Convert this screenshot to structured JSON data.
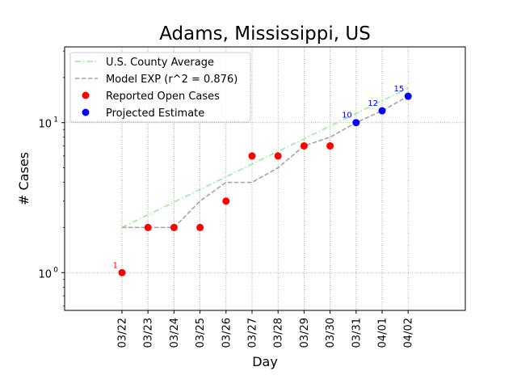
{
  "chart_data": {
    "type": "line",
    "title": "Adams, Mississippi, US",
    "xlabel": "Day",
    "ylabel": "# Cases",
    "yscale": "log",
    "ylim": [
      0.56,
      32
    ],
    "grid": true,
    "legend_position": "top-left",
    "categories": [
      "03/22",
      "03/23",
      "03/24",
      "03/25",
      "03/26",
      "03/27",
      "03/28",
      "03/29",
      "03/30",
      "03/31",
      "04/01",
      "04/02"
    ],
    "yticks": [
      {
        "value": 1,
        "label": "10",
        "sup": "0"
      },
      {
        "value": 10,
        "label": "10",
        "sup": "1"
      }
    ],
    "series": [
      {
        "name": "U.S. County Average",
        "style": "dashdot",
        "color": "#90ee90",
        "x": [
          "03/22",
          "04/02"
        ],
        "values": [
          2,
          17
        ]
      },
      {
        "name": "Model EXP (r^2 = 0.876)",
        "style": "dashed",
        "color": "#a0a0a0",
        "x": [
          "03/22",
          "03/23",
          "03/24",
          "03/25",
          "03/26",
          "03/27",
          "03/28",
          "03/29",
          "03/30",
          "03/31",
          "04/01",
          "04/02"
        ],
        "values": [
          2,
          2,
          2,
          3,
          4,
          4,
          5,
          7,
          8,
          10,
          12,
          15
        ]
      },
      {
        "name": "Reported Open Cases",
        "style": "marker",
        "color": "#ff0000",
        "x": [
          "03/22",
          "03/23",
          "03/24",
          "03/25",
          "03/26",
          "03/27",
          "03/28",
          "03/29",
          "03/30"
        ],
        "values": [
          1,
          2,
          2,
          2,
          3,
          6,
          6,
          7,
          7
        ]
      },
      {
        "name": "Projected Estimate",
        "style": "marker",
        "color": "#0000ff",
        "x": [
          "03/31",
          "04/01",
          "04/02"
        ],
        "values": [
          10,
          12,
          15
        ]
      }
    ],
    "annotations": [
      {
        "x": "03/22",
        "y": 1,
        "text": "1",
        "color": "#ff0000"
      },
      {
        "x": "03/31",
        "y": 10,
        "text": "10",
        "color": "#0000ff"
      },
      {
        "x": "04/01",
        "y": 12,
        "text": "12",
        "color": "#0000ff"
      },
      {
        "x": "04/02",
        "y": 15,
        "text": "15",
        "color": "#0000ff"
      }
    ]
  }
}
